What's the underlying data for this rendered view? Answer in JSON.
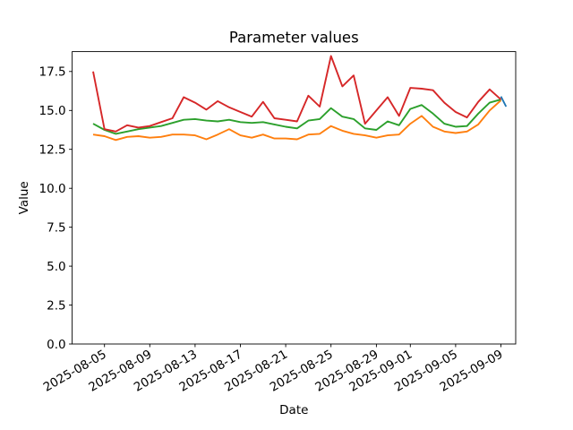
{
  "figure": {
    "background": "#ffffff"
  },
  "chart_data": {
    "type": "line",
    "title": "Parameter values",
    "xlabel": "Date",
    "ylabel": "Value",
    "grid": false,
    "legend": "none",
    "x_start": "2025-08-04",
    "xlim_days": [
      -1.85,
      37.3
    ],
    "ylim": [
      0,
      18.78
    ],
    "x_ticks": [
      "2025-08-05",
      "2025-08-09",
      "2025-08-13",
      "2025-08-17",
      "2025-08-21",
      "2025-08-25",
      "2025-08-29",
      "2025-09-01",
      "2025-09-05",
      "2025-09-09"
    ],
    "y_tick_labels": [
      "0.0",
      "2.5",
      "5.0",
      "7.5",
      "10.0",
      "12.5",
      "15.0",
      "17.5"
    ],
    "dates": [
      "2025-08-04",
      "2025-08-05",
      "2025-08-06",
      "2025-08-07",
      "2025-08-08",
      "2025-08-09",
      "2025-08-10",
      "2025-08-11",
      "2025-08-12",
      "2025-08-13",
      "2025-08-14",
      "2025-08-15",
      "2025-08-16",
      "2025-08-17",
      "2025-08-18",
      "2025-08-19",
      "2025-08-20",
      "2025-08-21",
      "2025-08-22",
      "2025-08-23",
      "2025-08-24",
      "2025-08-25",
      "2025-08-26",
      "2025-08-27",
      "2025-08-28",
      "2025-08-29",
      "2025-08-30",
      "2025-08-31",
      "2025-09-01",
      "2025-09-02",
      "2025-09-03",
      "2025-09-04",
      "2025-09-05",
      "2025-09-06",
      "2025-09-07",
      "2025-09-08",
      "2025-09-09"
    ],
    "series": [
      {
        "name": "series-blue",
        "color": "#1f77b4",
        "dates": [
          "2025-09-09T00:00",
          "2025-09-09T11:00"
        ],
        "values": [
          15.9,
          15.25
        ]
      },
      {
        "name": "series-orange",
        "color": "#ff7f0e",
        "values": [
          13.45,
          13.35,
          13.1,
          13.3,
          13.35,
          13.25,
          13.3,
          13.45,
          13.45,
          13.4,
          13.15,
          13.45,
          13.8,
          13.4,
          13.25,
          13.45,
          13.2,
          13.2,
          13.15,
          13.45,
          13.5,
          14.0,
          13.7,
          13.5,
          13.4,
          13.25,
          13.4,
          13.45,
          14.15,
          14.65,
          13.95,
          13.65,
          13.55,
          13.65,
          14.1,
          15.0,
          15.65
        ]
      },
      {
        "name": "series-green",
        "color": "#2ca02c",
        "values": [
          14.15,
          13.75,
          13.5,
          13.65,
          13.8,
          13.9,
          14.0,
          14.2,
          14.4,
          14.45,
          14.35,
          14.3,
          14.4,
          14.25,
          14.2,
          14.25,
          14.1,
          13.95,
          13.85,
          14.35,
          14.45,
          15.15,
          14.6,
          14.45,
          13.85,
          13.75,
          14.3,
          14.05,
          15.1,
          15.35,
          14.8,
          14.15,
          13.95,
          14.0,
          14.8,
          15.5,
          15.7
        ]
      },
      {
        "name": "series-red",
        "color": "#d62728",
        "values": [
          17.5,
          13.8,
          13.65,
          14.05,
          13.9,
          14.0,
          14.25,
          14.5,
          15.85,
          15.5,
          15.05,
          15.6,
          15.2,
          14.9,
          14.6,
          15.55,
          14.5,
          14.4,
          14.3,
          15.95,
          15.25,
          18.5,
          16.55,
          17.25,
          14.15,
          15.0,
          15.85,
          14.65,
          16.45,
          16.4,
          16.3,
          15.5,
          14.9,
          14.55,
          15.55,
          16.35,
          15.7
        ]
      }
    ]
  }
}
